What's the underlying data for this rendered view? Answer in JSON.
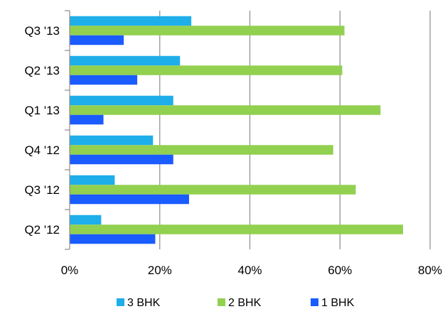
{
  "chart_data": {
    "type": "bar",
    "orientation": "horizontal",
    "categories": [
      "Q2 '12",
      "Q3 '12",
      "Q4 '12",
      "Q1 '13",
      "Q2 '13",
      "Q3 '13"
    ],
    "series": [
      {
        "name": "1 BHK",
        "color": "#1a5cff",
        "values": [
          19,
          26.5,
          23,
          7.5,
          15,
          12
        ]
      },
      {
        "name": "2 BHK",
        "color": "#92d050",
        "values": [
          74,
          63.5,
          58.5,
          69,
          60.5,
          61
        ]
      },
      {
        "name": "3 BHK",
        "color": "#1eaeea",
        "values": [
          7,
          10,
          18.5,
          23,
          24.5,
          27
        ]
      }
    ],
    "x_ticks": [
      "0%",
      "20%",
      "40%",
      "60%",
      "80%"
    ],
    "xlim": [
      0,
      80
    ],
    "grid": true,
    "legend": {
      "placement": "bottom",
      "order": [
        "3 BHK",
        "2 BHK",
        "1 BHK"
      ]
    }
  }
}
